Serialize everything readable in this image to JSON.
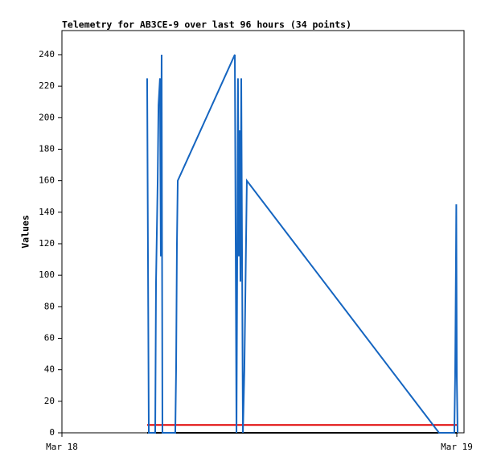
{
  "chart_data": {
    "type": "line",
    "title": "Telemetry for AB3CE-9 over last 96 hours (34 points)",
    "y_label": "Values",
    "xlim": [
      0,
      24.44
    ],
    "xticks": [
      {
        "value": 0,
        "label": "Mar 18"
      },
      {
        "value": 24,
        "label": "Mar 19"
      }
    ],
    "ylim": [
      0,
      255.3
    ],
    "yticks": [
      0,
      20,
      40,
      60,
      80,
      100,
      120,
      140,
      160,
      180,
      200,
      220,
      240
    ],
    "series": [
      {
        "color": "#000000",
        "x": [
          5.18,
          24.05
        ],
        "values": [
          0,
          0
        ]
      },
      {
        "color": "#e00000",
        "x": [
          5.18,
          24.05
        ],
        "values": [
          5,
          5
        ]
      },
      {
        "color": "#1565c0",
        "x": [
          5.18,
          5.23,
          5.28,
          5.67,
          5.72,
          5.82,
          5.87,
          5.96,
          6.01,
          6.06,
          6.11,
          6.89,
          6.94,
          6.99,
          7.04,
          10.51,
          10.56,
          10.61,
          10.7,
          10.75,
          10.8,
          10.85,
          10.9,
          11.0,
          11.09,
          11.19,
          11.24,
          22.92,
          23.85,
          23.9,
          23.95,
          23.97,
          24.0,
          24.05
        ],
        "values": [
          225,
          112,
          0,
          0,
          96,
          160,
          208,
          225,
          112,
          240,
          0,
          0,
          40,
          120,
          160,
          240,
          120,
          0,
          225,
          112,
          192,
          96,
          225,
          0,
          40,
          120,
          160,
          0,
          0,
          36,
          108,
          145,
          36,
          0
        ]
      }
    ]
  }
}
